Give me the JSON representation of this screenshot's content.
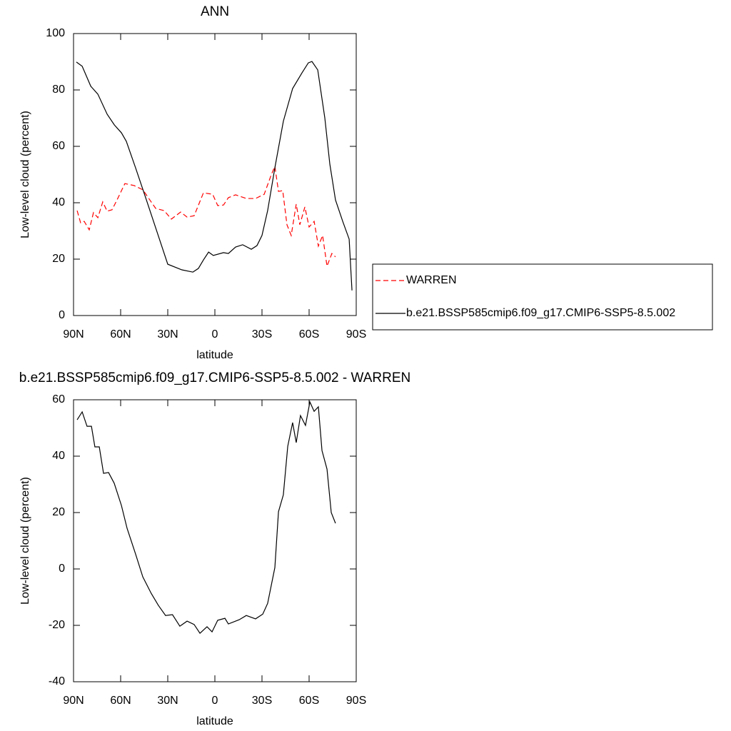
{
  "chart_data": [
    {
      "type": "line",
      "title": "ANN",
      "xlabel": "latitude",
      "ylabel": "Low-level cloud (percent)",
      "xlim": [
        90,
        -90
      ],
      "xticks": [
        {
          "value": 90,
          "label": "90N"
        },
        {
          "value": 60,
          "label": "60N"
        },
        {
          "value": 30,
          "label": "30N"
        },
        0,
        {
          "value": -30,
          "label": "30S"
        },
        {
          "value": -60,
          "label": "60S"
        },
        {
          "value": -90,
          "label": "90S"
        }
      ],
      "ylim": [
        0,
        100
      ],
      "yticks": [
        0,
        20,
        40,
        60,
        80,
        100
      ],
      "legend": "right",
      "series": [
        {
          "name": "WARREN",
          "color": "#ff0000",
          "dashed": true,
          "x": [
            87.7,
            85.5,
            83.2,
            80,
            77.3,
            74.5,
            71.4,
            68.6,
            65.5,
            62.3,
            57.3,
            51.4,
            45.9,
            37.7,
            32.3,
            27.7,
            21.8,
            17.7,
            13.2,
            7.3,
            1.4,
            -1.8,
            -5.5,
            -8.6,
            -13.2,
            -20,
            -25.9,
            -31.4,
            -35.9,
            -38.2,
            -40.5,
            -43.2,
            -45.9,
            -48.6,
            -51.8,
            -54.1,
            -57.3,
            -60,
            -63.2,
            -65.9,
            -68.6,
            -71.4,
            -74.5,
            -76.8
          ],
          "values": [
            37.2,
            32.9,
            33.4,
            30.4,
            36.5,
            34.7,
            40.3,
            37,
            37.5,
            41,
            46.8,
            46.1,
            44.6,
            38,
            37.2,
            34.2,
            36.7,
            34.9,
            35.4,
            43.5,
            43,
            39,
            39.2,
            41.8,
            42.8,
            41.5,
            41.5,
            43,
            49.9,
            52.9,
            44,
            44.3,
            32.2,
            28.4,
            39.5,
            32.2,
            38.5,
            31.4,
            33.4,
            24.6,
            28.4,
            17.5,
            22,
            20.8
          ]
        },
        {
          "name": "b.e21.BSSP585cmip6.f09_g17.CMIP6-SSP5-8.5.002",
          "color": "#000000",
          "dashed": false,
          "x": [
            88.2,
            84.5,
            79,
            74.5,
            68.6,
            64,
            59.5,
            56.4,
            50.5,
            43.6,
            36.8,
            30,
            21,
            14,
            10.5,
            7.3,
            4,
            1,
            -5.5,
            -8.6,
            -13.2,
            -17.7,
            -23.2,
            -26.8,
            -30,
            -33.6,
            -38.2,
            -43.6,
            -49.5,
            -55.5,
            -59.5,
            -61.8,
            -65.5,
            -70,
            -73.2,
            -76.8,
            -81.4,
            -85.5,
            -87.3
          ],
          "values": [
            89.9,
            88.4,
            81.3,
            78.5,
            71.4,
            67.6,
            64.8,
            61.8,
            52.4,
            41,
            29.6,
            18.2,
            16.2,
            15.4,
            16.7,
            19.7,
            22.5,
            21.3,
            22.3,
            22,
            24.3,
            25.1,
            23.5,
            24.8,
            28.4,
            37.2,
            52.4,
            68.9,
            80.5,
            86.1,
            89.6,
            90.1,
            87.1,
            70.1,
            53.7,
            41,
            33.4,
            27.1,
            8.9
          ]
        }
      ]
    },
    {
      "type": "line",
      "title": "b.e21.BSSP585cmip6.f09_g17.CMIP6-SSP5-8.5.002 - WARREN",
      "xlabel": "latitude",
      "ylabel": "Low-level cloud (percent)",
      "xlim": [
        90,
        -90
      ],
      "xticks": [
        {
          "value": 90,
          "label": "90N"
        },
        {
          "value": 60,
          "label": "60N"
        },
        {
          "value": 30,
          "label": "30N"
        },
        0,
        {
          "value": -30,
          "label": "30S"
        },
        {
          "value": -60,
          "label": "60S"
        },
        {
          "value": -90,
          "label": "90S"
        }
      ],
      "ylim": [
        -40,
        60
      ],
      "yticks": [
        -40,
        -20,
        0,
        20,
        40,
        60
      ],
      "series": [
        {
          "color": "#000000",
          "dashed": false,
          "x": [
            87.7,
            84.5,
            81.4,
            78.6,
            76.4,
            73.6,
            70.9,
            67.7,
            64.1,
            59.5,
            55.9,
            50.5,
            45.9,
            40.5,
            36,
            31.4,
            27,
            22.3,
            17.7,
            13.2,
            9.5,
            5,
            1.8,
            -1.8,
            -6.4,
            -8.6,
            -15.5,
            -20,
            -25.9,
            -30.5,
            -33.6,
            -38.2,
            -40.5,
            -43.6,
            -46.4,
            -49.5,
            -51.8,
            -54.5,
            -57.7,
            -60.5,
            -63.2,
            -65.9,
            -68.2,
            -71.4,
            -74.1,
            -76.8
          ],
          "values": [
            52.9,
            55.7,
            50.6,
            50.6,
            43.3,
            43.3,
            33.9,
            34.2,
            30.4,
            22.5,
            14.4,
            5.3,
            -2.8,
            -8.7,
            -12.9,
            -16.5,
            -16.2,
            -20.3,
            -18.5,
            -19.7,
            -22.8,
            -20.5,
            -22.3,
            -18.2,
            -17.5,
            -19.5,
            -18,
            -16.5,
            -17.7,
            -16,
            -12.2,
            0.5,
            20.3,
            26.3,
            43.5,
            51.9,
            44.8,
            54.4,
            50.9,
            59.2,
            55.9,
            57.5,
            42,
            35.4,
            20,
            16.2
          ]
        }
      ]
    }
  ]
}
